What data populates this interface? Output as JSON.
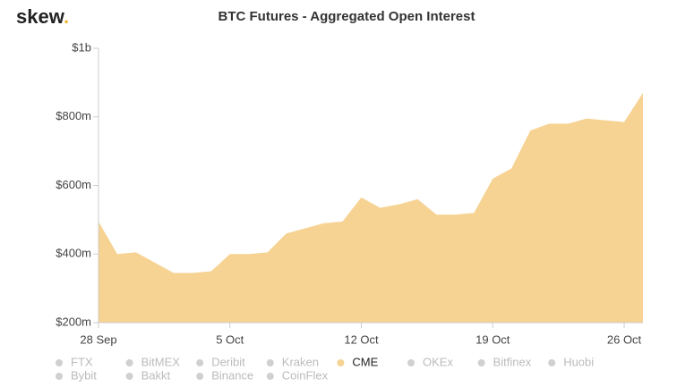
{
  "logo": [
    "skew",
    "."
  ],
  "chart_data": {
    "type": "area",
    "title": "BTC Futures - Aggregated Open Interest",
    "categories": [
      "28 Sep",
      null,
      null,
      null,
      null,
      null,
      null,
      "5 Oct",
      null,
      null,
      null,
      null,
      null,
      null,
      "12 Oct",
      null,
      null,
      null,
      null,
      null,
      null,
      "19 Oct",
      null,
      null,
      null,
      null,
      null,
      null,
      "26 Oct",
      null
    ],
    "series": [
      {
        "name": "FTX",
        "color": "#d0d0d0",
        "visible": false,
        "values": null
      },
      {
        "name": "BitMEX",
        "color": "#d0d0d0",
        "visible": false,
        "values": null
      },
      {
        "name": "Deribit",
        "color": "#d0d0d0",
        "visible": false,
        "values": null
      },
      {
        "name": "Kraken",
        "color": "#d0d0d0",
        "visible": false,
        "values": null
      },
      {
        "name": "CME",
        "color": "#f6d393",
        "visible": true,
        "values": [
          495,
          400,
          405,
          375,
          345,
          345,
          350,
          400,
          400,
          405,
          460,
          475,
          490,
          495,
          565,
          535,
          545,
          560,
          515,
          515,
          520,
          620,
          650,
          760,
          780,
          780,
          795,
          790,
          785,
          870
        ]
      },
      {
        "name": "OKEx",
        "color": "#d0d0d0",
        "visible": false,
        "values": null
      },
      {
        "name": "Bitfinex",
        "color": "#d0d0d0",
        "visible": false,
        "values": null
      },
      {
        "name": "Huobi",
        "color": "#d0d0d0",
        "visible": false,
        "values": null
      },
      {
        "name": "Bybit",
        "color": "#d0d0d0",
        "visible": false,
        "values": null
      },
      {
        "name": "Bakkt",
        "color": "#d0d0d0",
        "visible": false,
        "values": null
      },
      {
        "name": "Binance",
        "color": "#d0d0d0",
        "visible": false,
        "values": null
      },
      {
        "name": "CoinFlex",
        "color": "#d0d0d0",
        "visible": false,
        "values": null
      }
    ],
    "ylim": [
      200,
      1000
    ],
    "yticks": [
      {
        "value": 200,
        "label": "$200m"
      },
      {
        "value": 400,
        "label": "$400m"
      },
      {
        "value": 600,
        "label": "$600m"
      },
      {
        "value": 800,
        "label": "$800m"
      },
      {
        "value": 1000,
        "label": "$1b"
      }
    ],
    "grid": false
  }
}
